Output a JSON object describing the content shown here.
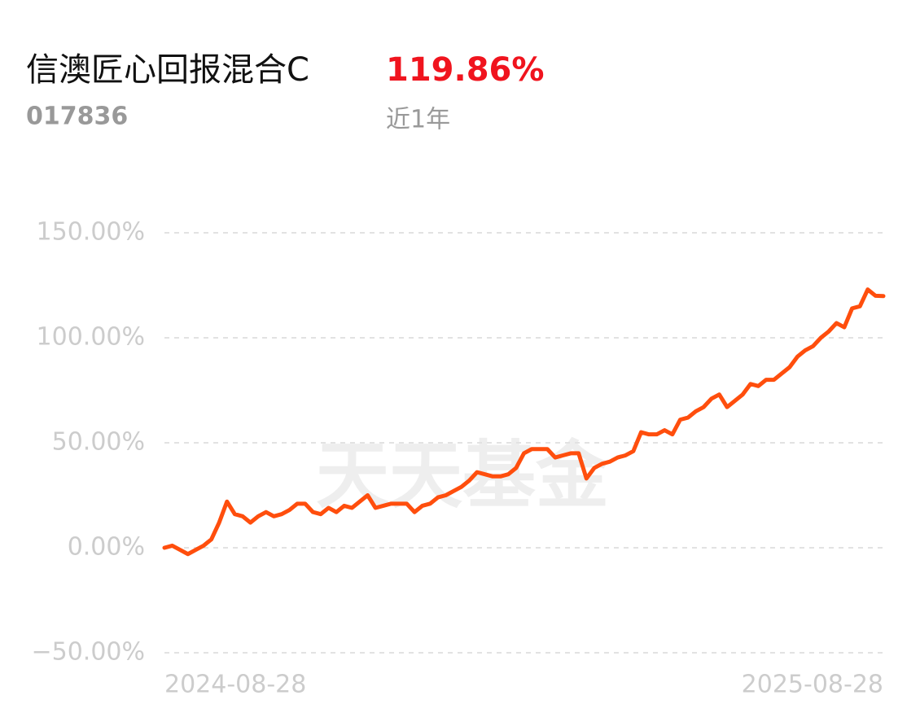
{
  "header": {
    "title": "信澳匠心回报混合C",
    "return_label": "119.86%",
    "code": "017836",
    "period": "近1年"
  },
  "watermark": "天天基金",
  "chart_data": {
    "type": "line",
    "categories": [
      "2024-08-28",
      null,
      null,
      null,
      null,
      null,
      null,
      null,
      null,
      null,
      null,
      null,
      null,
      null,
      null,
      null,
      null,
      null,
      null,
      null,
      null,
      null,
      null,
      null,
      null,
      null,
      null,
      null,
      null,
      null,
      null,
      null,
      null,
      null,
      null,
      null,
      null,
      null,
      null,
      null,
      null,
      null,
      null,
      null,
      null,
      null,
      null,
      null,
      null,
      null,
      null,
      null,
      null,
      null,
      null,
      null,
      null,
      null,
      null,
      null,
      null,
      null,
      null,
      null,
      null,
      null,
      null,
      null,
      null,
      null,
      null,
      null,
      null,
      null,
      null,
      null,
      null,
      null,
      null,
      null,
      null,
      null,
      null,
      null,
      null,
      null,
      null,
      null,
      null,
      null,
      null,
      null,
      "2025-08-28"
    ],
    "series": [
      {
        "color": "#ff4e0d",
        "values": [
          0,
          1,
          -1,
          -3,
          -1,
          1,
          4,
          12,
          22,
          16,
          15,
          12,
          15,
          17,
          15,
          16,
          18,
          21,
          21,
          17,
          16,
          19,
          17,
          20,
          19,
          22,
          25,
          19,
          20,
          21,
          21,
          21,
          17,
          20,
          21,
          24,
          25,
          27,
          29,
          32,
          36,
          35,
          34,
          34,
          35,
          38,
          45,
          47,
          47,
          47,
          43,
          44,
          45,
          45,
          33,
          38,
          40,
          41,
          43,
          44,
          46,
          55,
          54,
          54,
          56,
          54,
          61,
          62,
          65,
          67,
          71,
          73,
          67,
          70,
          73,
          78,
          77,
          80,
          80,
          83,
          86,
          91,
          94,
          96,
          100,
          103,
          107,
          105,
          114,
          115,
          123,
          120,
          119.86
        ]
      }
    ],
    "ylim": [
      -50,
      150
    ],
    "yticks": [
      {
        "value": -50,
        "label": "−50.00%"
      },
      {
        "value": 0,
        "label": "0.00%"
      },
      {
        "value": 50,
        "label": "50.00%"
      },
      {
        "value": 100,
        "label": "100.00%"
      },
      {
        "value": 150,
        "label": "150.00%"
      }
    ],
    "grid": true
  }
}
